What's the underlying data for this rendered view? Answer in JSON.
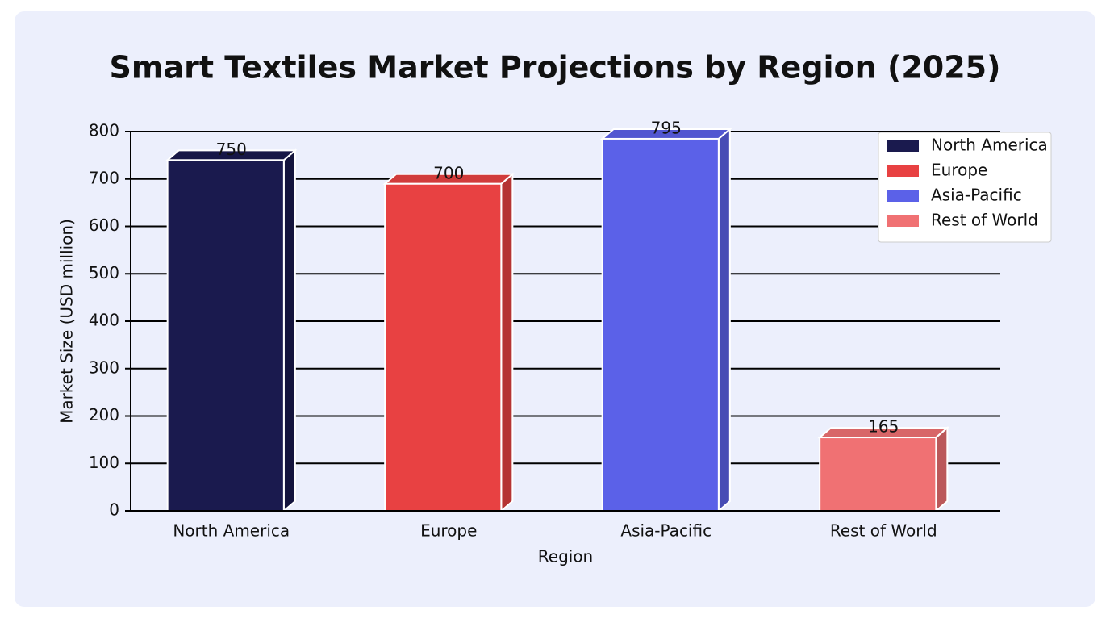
{
  "chart_data": {
    "type": "bar3d",
    "title": "Smart Textiles Market Projections by Region (2025)",
    "x_label": "Region",
    "y_label": "Market Size (USD million)",
    "categories": [
      "North America",
      "Europe",
      "Asia-Pacific",
      "Rest of World"
    ],
    "values": [
      750,
      700,
      795,
      165
    ],
    "colors": [
      "#1a1a4e",
      "#e84142",
      "#5b61e8",
      "#f07173"
    ],
    "ylim": [
      0,
      800
    ],
    "yticks": [
      0,
      100,
      200,
      300,
      400,
      500,
      600,
      700,
      800
    ],
    "grid": true,
    "legend": "upper right"
  }
}
